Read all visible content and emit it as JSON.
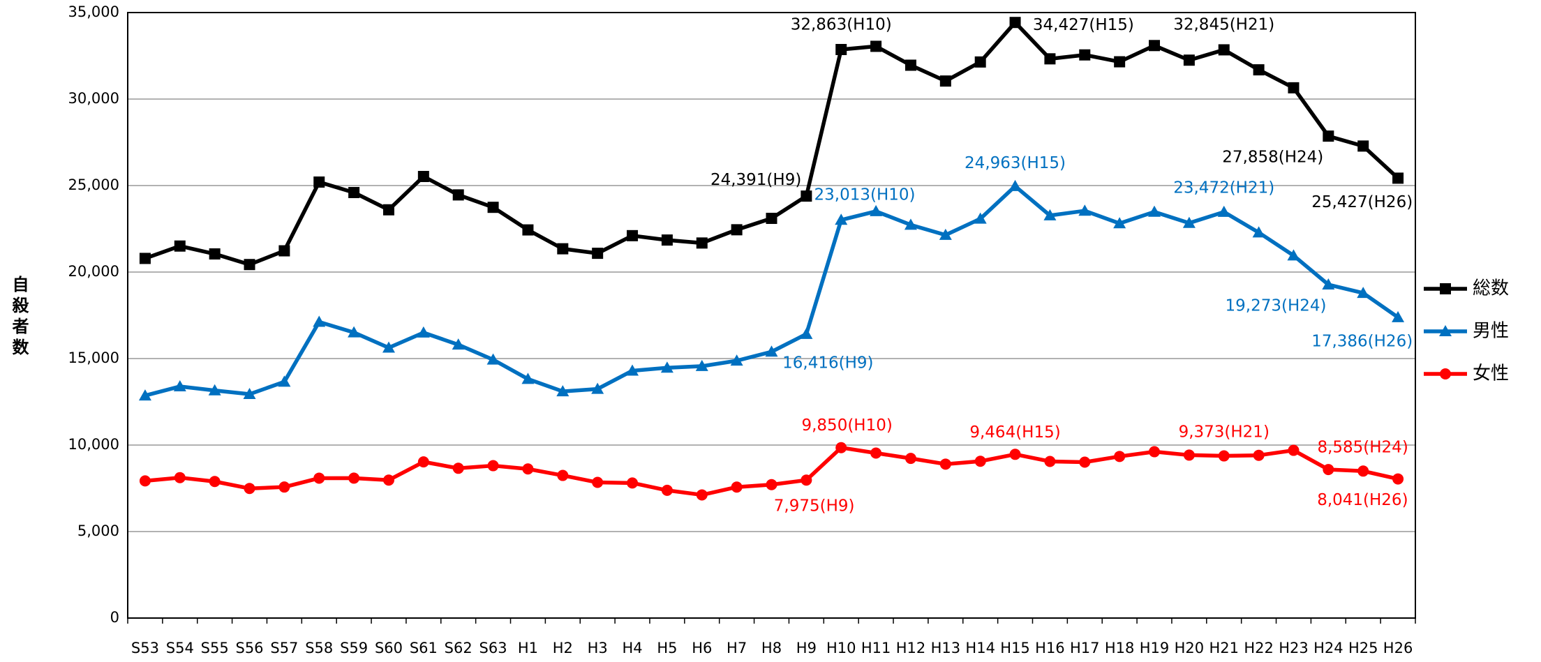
{
  "chart_data": {
    "type": "line",
    "y_label": "自殺者数",
    "categories": [
      "S53",
      "S54",
      "S55",
      "S56",
      "S57",
      "S58",
      "S59",
      "S60",
      "S61",
      "S62",
      "S63",
      "H1",
      "H2",
      "H3",
      "H4",
      "H5",
      "H6",
      "H7",
      "H8",
      "H9",
      "H10",
      "H11",
      "H12",
      "H13",
      "H14",
      "H15",
      "H16",
      "H17",
      "H18",
      "H19",
      "H20",
      "H21",
      "H22",
      "H23",
      "H24",
      "H25",
      "H26"
    ],
    "ylim": [
      0,
      35000
    ],
    "yticks": [
      0,
      {
        "value": 5000,
        "label": "5,000"
      },
      {
        "value": 10000,
        "label": "10,000"
      },
      {
        "value": 15000,
        "label": "15,000"
      },
      {
        "value": 20000,
        "label": "20,000"
      },
      {
        "value": 25000,
        "label": "25,000"
      },
      {
        "value": 30000,
        "label": "30,000"
      },
      {
        "value": 35000,
        "label": "35,000"
      }
    ],
    "grid": true,
    "legend": "right",
    "series": [
      {
        "name": "総数",
        "color": "#000000",
        "marker": "square",
        "values": [
          20788,
          21503,
          21048,
          20434,
          21228,
          25202,
          24596,
          23599,
          25524,
          24460,
          23742,
          22436,
          21346,
          21084,
          22104,
          21851,
          21679,
          22445,
          23104,
          24391,
          32863,
          33048,
          31957,
          31042,
          32143,
          34427,
          32325,
          32552,
          32155,
          33093,
          32249,
          32845,
          31690,
          30651,
          27858,
          27283,
          25427
        ],
        "value_labels": [
          null,
          null,
          null,
          null,
          null,
          null,
          null,
          null,
          null,
          null,
          null,
          null,
          null,
          null,
          null,
          null,
          null,
          null,
          null,
          "24,391(H9)",
          "32,863(H10)",
          null,
          null,
          null,
          null,
          "34,427(H15)",
          null,
          null,
          null,
          null,
          null,
          "32,845(H21)",
          null,
          null,
          "27,858(H24)",
          null,
          "25,427(H26)"
        ]
      },
      {
        "name": "男性",
        "color": "#0070c0",
        "marker": "triangle",
        "values": [
          12859,
          13386,
          13155,
          12942,
          13654,
          17116,
          16508,
          15624,
          16497,
          15802,
          14934,
          13818,
          13102,
          13242,
          14296,
          14468,
          14560,
          14874,
          15393,
          16416,
          23013,
          23512,
          22727,
          22144,
          23080,
          24963,
          23272,
          23540,
          22813,
          23478,
          22831,
          23472,
          22283,
          20955,
          19273,
          18787,
          17386
        ],
        "value_labels": [
          null,
          null,
          null,
          null,
          null,
          null,
          null,
          null,
          null,
          null,
          null,
          null,
          null,
          null,
          null,
          null,
          null,
          null,
          null,
          "16,416(H9)",
          "23,013(H10)",
          null,
          null,
          null,
          null,
          "24,963(H15)",
          null,
          null,
          null,
          null,
          null,
          "23,472(H21)",
          null,
          null,
          "19,273(H24)",
          null,
          "17,386(H26)"
        ]
      },
      {
        "name": "女性",
        "color": "#ff0000",
        "marker": "circle",
        "values": [
          7929,
          8117,
          7893,
          7492,
          7574,
          8086,
          8088,
          7975,
          9027,
          8658,
          8808,
          8618,
          8244,
          7842,
          7808,
          7383,
          7119,
          7571,
          7711,
          7975,
          9850,
          9536,
          9230,
          8898,
          9063,
          9464,
          9053,
          9012,
          9342,
          9615,
          9418,
          9373,
          9407,
          9696,
          8585,
          8496,
          8041
        ],
        "value_labels": [
          null,
          null,
          null,
          null,
          null,
          null,
          null,
          null,
          null,
          null,
          null,
          null,
          null,
          null,
          null,
          null,
          null,
          null,
          null,
          "7,975(H9)",
          "9,850(H10)",
          null,
          null,
          null,
          null,
          "9,464(H15)",
          null,
          null,
          null,
          null,
          null,
          "9,373(H21)",
          null,
          null,
          "8,585(H24)",
          null,
          "8,041(H26)"
        ]
      }
    ]
  }
}
